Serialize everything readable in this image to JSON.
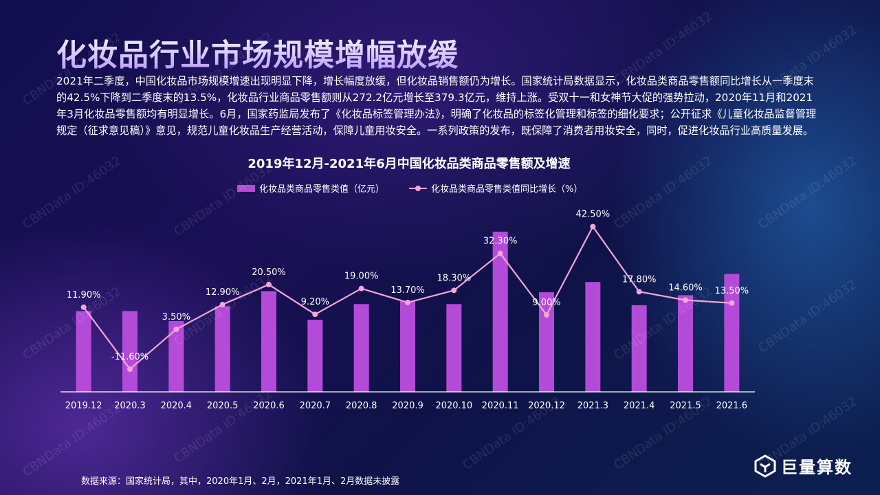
{
  "page": {
    "title": "化妆品行业市场规模增幅放缓",
    "intro": "2021年二季度，中国化妆品市场规模增速出现明显下降，增长幅度放缓，但化妆品销售额仍为增长。国家统计局数据显示，化妆品类商品零售额同比增长从一季度末的42.5%下降到二季度末的13.5%，化妆品行业商品零售额则从272.2亿元增长至379.3亿元，维持上涨。受双十一和女神节大促的强势拉动，2020年11月和2021年3月化妆品零售额均有明显增长。6月，国家药监局发布了《化妆品标签管理办法》，明确了化妆品的标签化管理和标签的细化要求；公开征求《儿童化妆品监督管理规定（征求意见稿）》意见，规范儿童化妆品生产经营活动，保障儿童用妆安全。一系列政策的发布，既保障了消费者用妆安全，同时，促进化妆品行业高质量发展。",
    "source": "数据来源：国家统计局，其中，2020年1月、2月，2021年1月、2月数据未披露",
    "watermark": "CBNData ID:46032",
    "brand": "巨量算数"
  },
  "chart_data": {
    "type": "bar+line",
    "title": "2019年12月-2021年6月中国化妆品类商品零售额及增速",
    "categories": [
      "2019.12",
      "2020.3",
      "2020.4",
      "2020.5",
      "2020.6",
      "2020.7",
      "2020.8",
      "2020.9",
      "2020.10",
      "2020.11",
      "2020.12",
      "2021.3",
      "2021.4",
      "2021.5",
      "2021.6"
    ],
    "series": [
      {
        "name": "化妆品类商品零售类值（亿元）",
        "type": "bar",
        "color": "#b44bd8",
        "values": [
          300,
          300,
          263,
          318,
          374,
          268,
          326,
          338,
          326,
          595,
          370,
          408,
          322,
          359,
          438
        ]
      },
      {
        "name": "化妆品类商品零售类值同比增长（%）",
        "type": "line",
        "color": "#f2a6d8",
        "values": [
          11.9,
          -11.6,
          3.5,
          12.9,
          20.5,
          9.2,
          19.0,
          13.7,
          18.3,
          32.3,
          9.0,
          42.5,
          17.8,
          14.6,
          13.5
        ],
        "labels": [
          "11.90%",
          "-11.60%",
          "3.50%",
          "12.90%",
          "20.50%",
          "9.20%",
          "19.00%",
          "13.70%",
          "18.30%",
          "32.30%",
          "9.00%",
          "42.50%",
          "17.80%",
          "14.60%",
          "13.50%"
        ]
      }
    ],
    "bar_axis_range": [
      0,
      600
    ],
    "line_axis_range": [
      -15,
      45
    ],
    "axis_labels_shown": false,
    "grid": false,
    "legend_position": "top-center"
  }
}
